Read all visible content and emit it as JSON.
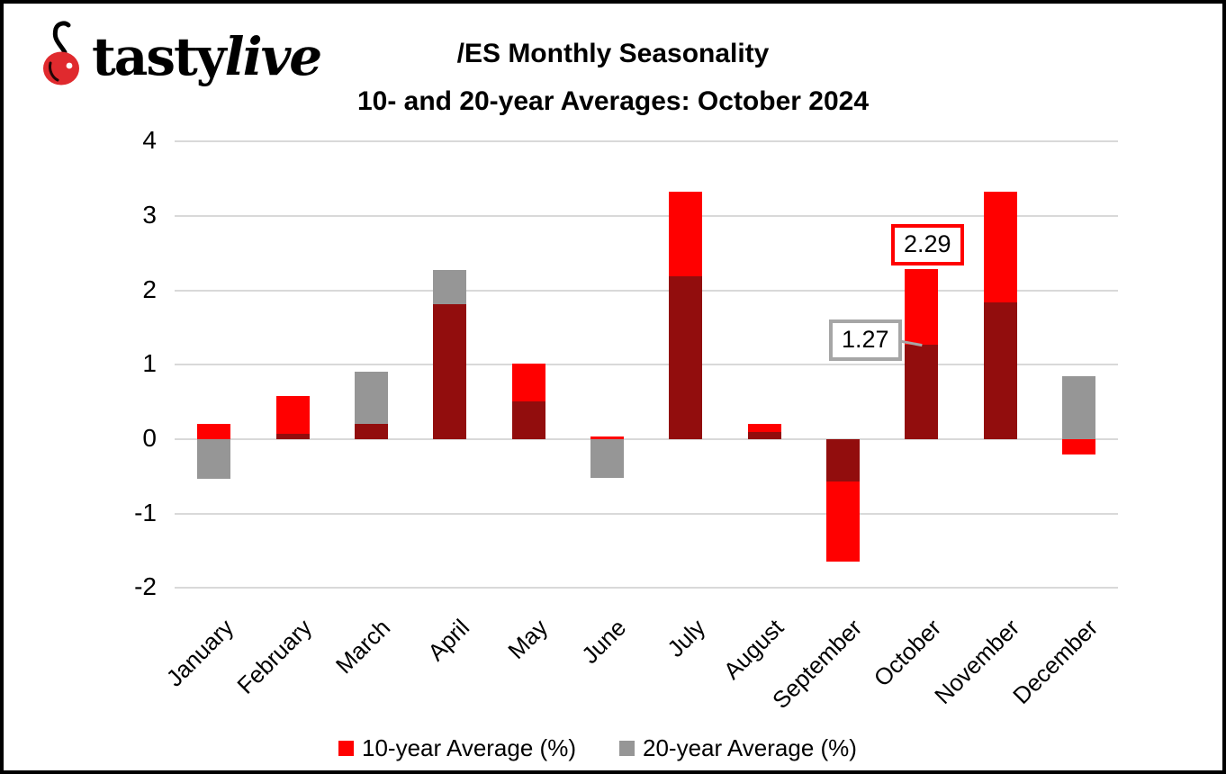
{
  "logo": {
    "brand_part1": "tasty",
    "brand_part2": "live",
    "cherry_color": "#E02A2E"
  },
  "title": {
    "line1": "/ES Monthly Seasonality",
    "line2": "10- and 20-year Averages: October 2024"
  },
  "chart_data": {
    "type": "bar",
    "categories": [
      "January",
      "February",
      "March",
      "April",
      "May",
      "June",
      "July",
      "August",
      "September",
      "October",
      "November",
      "December"
    ],
    "series": [
      {
        "name": "10-year Average (%)",
        "color": "#FF0000",
        "values": [
          0.2,
          0.58,
          0.2,
          1.81,
          1.01,
          0.04,
          3.32,
          0.2,
          -1.65,
          2.29,
          3.33,
          -0.21
        ]
      },
      {
        "name": "20-year Average (%)",
        "color": "#969696",
        "values": [
          -0.53,
          0.07,
          0.91,
          2.27,
          0.51,
          -0.52,
          2.19,
          0.1,
          -0.57,
          1.27,
          1.84,
          0.85
        ]
      }
    ],
    "overlap_color": "#920D0D",
    "ylim": [
      -2,
      4
    ],
    "yticks": [
      4,
      3,
      2,
      1,
      0,
      -1,
      -2
    ],
    "grid": true,
    "gridline_color": "#D9D9D9",
    "legend_position": "bottom",
    "annotations": [
      {
        "text": "2.29",
        "month": "October",
        "series": "10-year Average (%)",
        "border_color": "#FF0000"
      },
      {
        "text": "1.27",
        "month": "October",
        "series": "20-year Average (%)",
        "border_color": "#A6A6A6"
      }
    ]
  }
}
